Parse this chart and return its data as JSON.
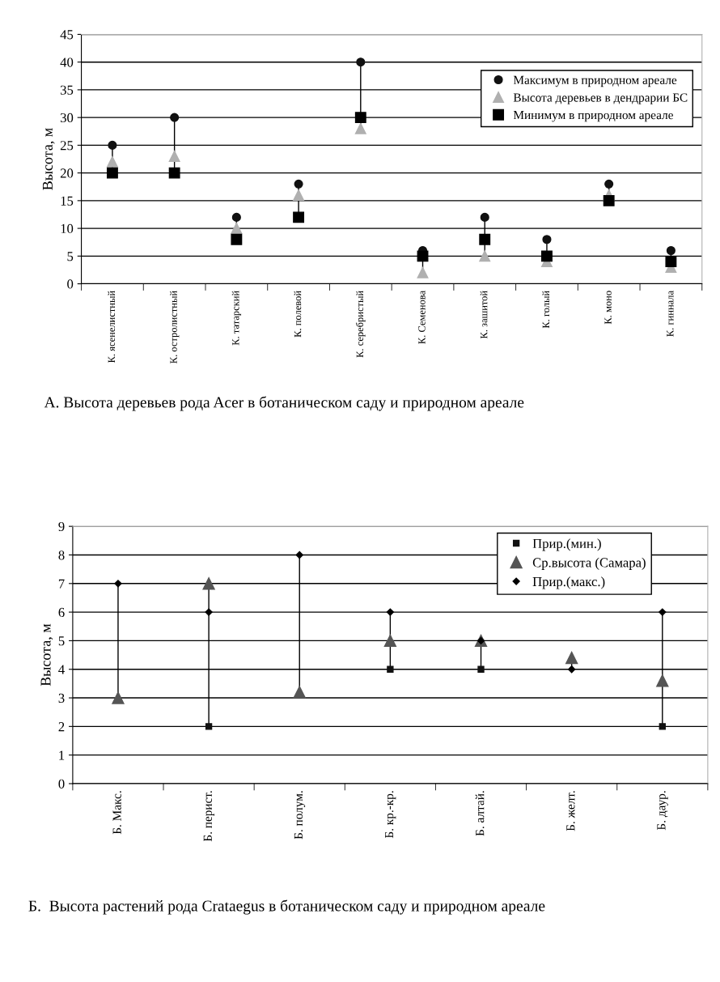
{
  "chart_data": [
    {
      "type": "scatter",
      "title": "А. Высота деревьев рода Acer в ботаническом саду и природном ареале",
      "ylabel": "Высота, м",
      "categories": [
        "К. ясенелистный",
        "К. остролистный",
        "К. татарский",
        "К. полевой",
        "К. серебристый",
        "К. Семенова",
        "К. зашитой",
        "К. голый",
        "К. моно",
        "К. гиннала"
      ],
      "series": [
        {
          "name": "Максимум в природном ареале",
          "color": "#111111",
          "marker": "circle",
          "values": [
            25,
            30,
            12,
            18,
            40,
            6,
            12,
            8,
            18,
            6
          ]
        },
        {
          "name": "Высота деревьев в дендрарии БС",
          "color": "#b0b0b0",
          "marker": "triangle",
          "values": [
            22,
            23,
            10,
            16,
            28,
            2,
            5,
            4,
            16,
            3
          ]
        },
        {
          "name": "Минимум в природном ареале",
          "color": "#000000",
          "marker": "square",
          "values": [
            20,
            20,
            8,
            12,
            30,
            5,
            8,
            5,
            15,
            4
          ]
        }
      ],
      "ylim": [
        0,
        45
      ],
      "yticks": [
        0,
        5,
        10,
        15,
        20,
        25,
        30,
        35,
        40,
        45
      ],
      "grid": "y",
      "legend": "top right"
    },
    {
      "type": "scatter",
      "title": "Б.  Высота растений рода Crataegus в ботаническом саду и природном ареале",
      "ylabel": "Высота, м",
      "categories": [
        "Б. Макс.",
        "Б. перист.",
        "Б. полум.",
        "Б. кр.-кр.",
        "Б. алтай.",
        "Б. желт.",
        "Б. даур."
      ],
      "series": [
        {
          "name": "Прир.(мин.)",
          "color": "#111111",
          "marker": "square",
          "values": [
            null,
            2,
            null,
            4,
            4,
            null,
            2
          ]
        },
        {
          "name": "Ср.высота (Самара)",
          "color": "#555555",
          "marker": "triangle",
          "values": [
            3,
            7,
            3.2,
            5,
            5,
            4.4,
            3.6
          ]
        },
        {
          "name": "Прир.(макс.)",
          "color": "#000000",
          "marker": "diamond",
          "values": [
            7,
            6,
            8,
            6,
            5,
            4,
            6
          ]
        }
      ],
      "ylim": [
        0,
        9
      ],
      "yticks": [
        0,
        1,
        2,
        3,
        4,
        5,
        6,
        7,
        8,
        9
      ],
      "grid": "y",
      "legend": "top"
    }
  ]
}
